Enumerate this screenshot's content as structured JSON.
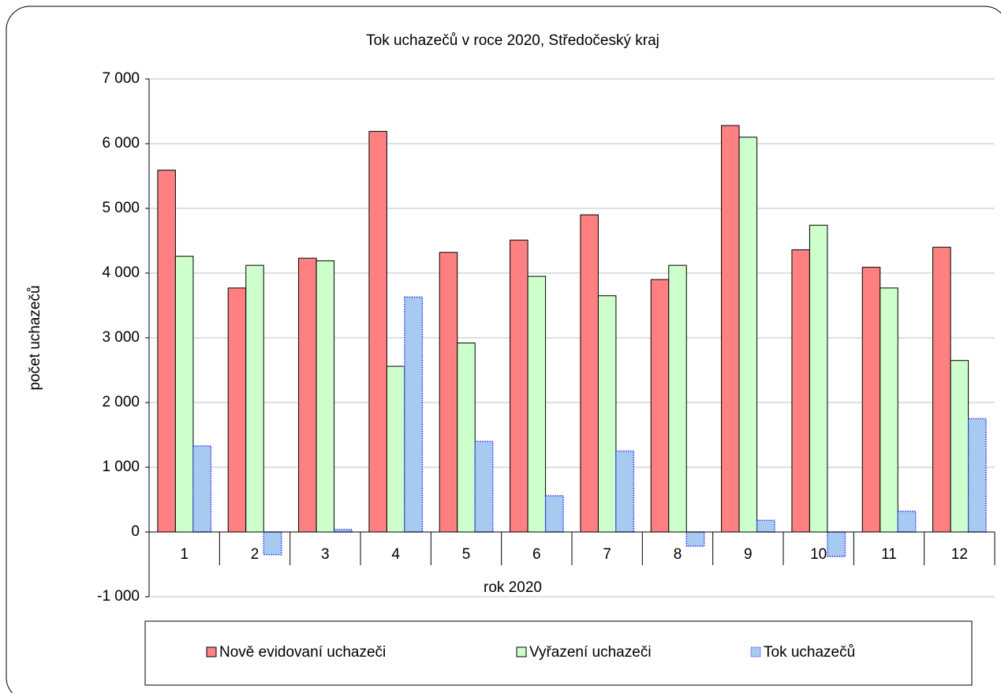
{
  "chart_data": {
    "type": "bar",
    "title": "Tok uchazečů v roce 2020, Středočeský kraj",
    "x_label": "rok 2020",
    "y_label": "počet uchazečů",
    "categories": [
      "1",
      "2",
      "3",
      "4",
      "5",
      "6",
      "7",
      "8",
      "9",
      "10",
      "11",
      "12"
    ],
    "series": [
      {
        "name": "Nově evidovaní uchazeči",
        "color": "#ff8080",
        "values": [
          5590,
          3770,
          4230,
          6190,
          4320,
          4510,
          4900,
          3900,
          6280,
          4360,
          4090,
          4400
        ]
      },
      {
        "name": "Vyřazení uchazeči",
        "color": "#ccffcc",
        "values": [
          4260,
          4120,
          4190,
          2560,
          2920,
          3950,
          3650,
          4120,
          6100,
          4740,
          3770,
          2650
        ]
      },
      {
        "name": "Tok uchazečů",
        "color": "#a6caf0",
        "values": [
          1330,
          -350,
          40,
          3630,
          1400,
          560,
          1250,
          -220,
          180,
          -380,
          320,
          1750
        ]
      }
    ],
    "ylim": [
      -1000,
      7000
    ],
    "yticks": [
      {
        "value": -1000,
        "label": "-1 000"
      },
      0,
      {
        "value": 1000,
        "label": "1 000"
      },
      {
        "value": 2000,
        "label": "2 000"
      },
      {
        "value": 3000,
        "label": "3 000"
      },
      {
        "value": 4000,
        "label": "4 000"
      },
      {
        "value": 5000,
        "label": "5 000"
      },
      {
        "value": 6000,
        "label": "6 000"
      },
      {
        "value": 7000,
        "label": "7 000"
      }
    ],
    "grid": true,
    "legend": "bottom"
  }
}
